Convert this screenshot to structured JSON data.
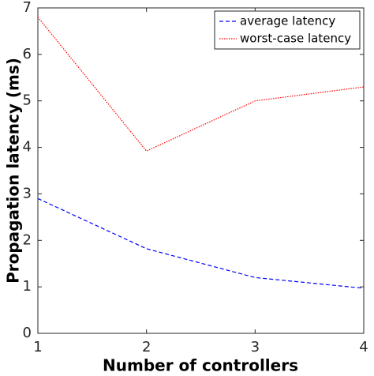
{
  "chart_data": {
    "type": "line",
    "x_label": "Number of controllers",
    "y_label": "Propagation latency (ms)",
    "x": [
      1,
      2,
      3,
      4
    ],
    "series": [
      {
        "name": "average latency",
        "color": "#0000ff",
        "style": "dashed",
        "values": [
          2.9,
          1.82,
          1.2,
          0.97
        ]
      },
      {
        "name": "worst-case latency",
        "color": "#ff0000",
        "style": "dotted",
        "values": [
          6.8,
          3.92,
          5.0,
          5.3
        ]
      }
    ],
    "xlim": [
      1,
      4
    ],
    "xticks": [
      1,
      2,
      3,
      4
    ],
    "ylim": [
      0,
      7
    ],
    "yticks": [
      0,
      1,
      2,
      3,
      4,
      5,
      6,
      7
    ],
    "legend": "upper right"
  }
}
